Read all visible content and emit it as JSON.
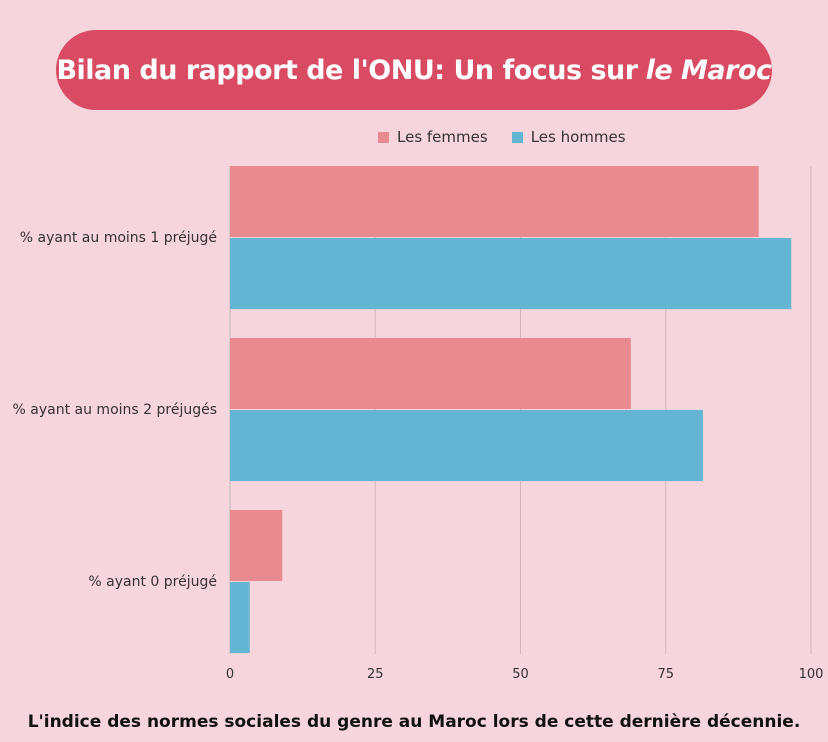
{
  "title": {
    "main": "Bilan du rapport de l'ONU: Un focus sur",
    "emphasis": "le Maroc"
  },
  "footer": "L'indice des normes sociales du genre au Maroc lors de cette dernière décennie.",
  "colors": {
    "background": "#f6d5dc",
    "title_bg": "#d84b63",
    "femmes": "#e88a90",
    "hommes": "#63b5d3"
  },
  "chart_data": {
    "type": "bar",
    "orientation": "horizontal",
    "categories": [
      "% ayant au moins 1 préjugé",
      "% ayant au moins 2 préjugés",
      "% ayant 0 préjugé"
    ],
    "series": [
      {
        "name": "Les femmes",
        "values": [
          91,
          69,
          9
        ]
      },
      {
        "name": "Les hommes",
        "values": [
          96.6,
          81.4,
          3.4
        ]
      }
    ],
    "xlim": [
      0,
      100
    ],
    "xticks": [
      "0",
      "25",
      "50",
      "75",
      "100"
    ],
    "grid": "vertical",
    "legend": "top"
  }
}
